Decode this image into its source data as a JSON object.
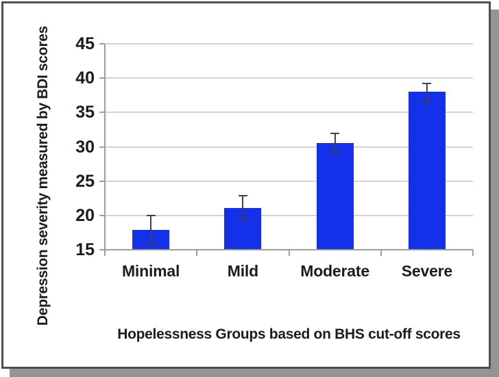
{
  "chart_data": {
    "type": "bar",
    "title": "",
    "categories": [
      "Minimal",
      "Mild",
      "Moderate",
      "Severe"
    ],
    "values": [
      17.9,
      21.1,
      30.6,
      38.0
    ],
    "error_low": [
      15.8,
      19.4,
      29.3,
      36.6
    ],
    "error_high": [
      20.0,
      22.9,
      31.9,
      39.2
    ],
    "xlabel": "Hopelessness Groups based on BHS cut-off scores",
    "ylabel": "Depression severity measured by BDI scores",
    "ylim": [
      15,
      45
    ],
    "yticks": [
      45,
      40,
      35,
      30,
      25,
      20,
      15
    ],
    "grid": "horizontal",
    "legend": "none",
    "bar_color": "#1430e8",
    "error_bar_color": "#3d414d",
    "gridline_color": "#d4d4d4",
    "axis_color": "#9d9d9d",
    "text_color": "#1c1c1c",
    "card_border_color": "#4f4f4f",
    "shadow_color": "#949494"
  }
}
